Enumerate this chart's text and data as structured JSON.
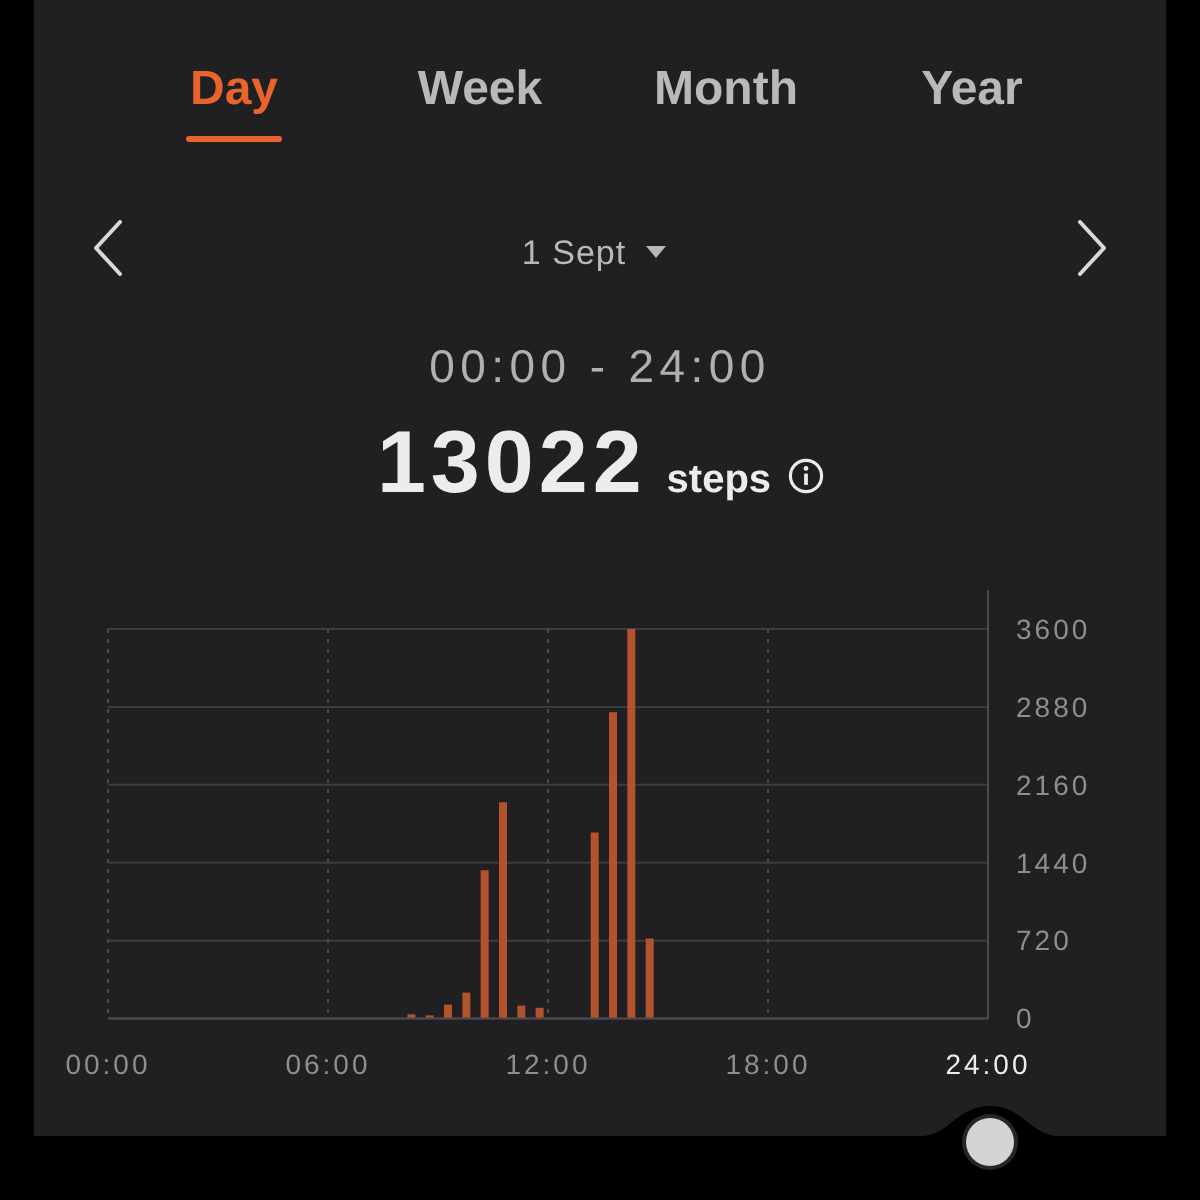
{
  "chart_data": {
    "type": "bar",
    "title": "13022 steps",
    "subtitle": "00:00 - 24:00",
    "annotations": [
      "Day",
      "Week",
      "Month",
      "Year",
      "1 Sept"
    ],
    "x": [
      8.25,
      8.75,
      9.25,
      9.75,
      10.25,
      10.75,
      11.25,
      11.75,
      13.25,
      13.75,
      14.25,
      14.75
    ],
    "values": [
      40,
      30,
      130,
      240,
      1370,
      2000,
      120,
      100,
      1720,
      2830,
      3600,
      740
    ],
    "color": "#b4522c",
    "xlim": [
      0,
      24
    ],
    "xticks": [
      {
        "value": 0,
        "label": "00:00"
      },
      {
        "value": 6,
        "label": "06:00"
      },
      {
        "value": 12,
        "label": "12:00"
      },
      {
        "value": 18,
        "label": "18:00"
      },
      {
        "value": 24,
        "label": "24:00"
      }
    ],
    "ylim": [
      0,
      3960
    ],
    "yticks": [
      0,
      720,
      1440,
      2160,
      2880,
      3600
    ],
    "grid": true
  }
}
